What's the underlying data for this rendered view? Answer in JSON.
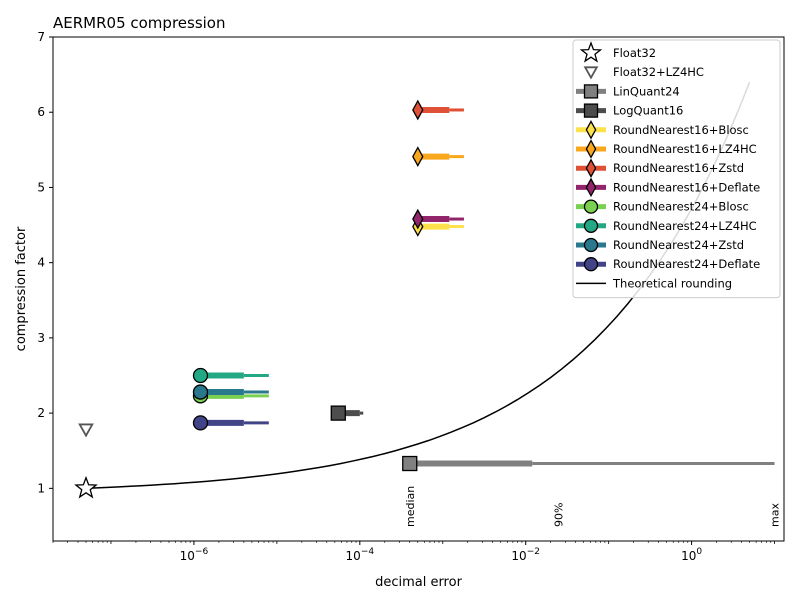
{
  "chart_data": {
    "type": "scatter",
    "title": "AERMR05 compression",
    "xlabel": "decimal error",
    "ylabel": "compression factor",
    "xscale": "log",
    "xlim": [
      2e-08,
      13
    ],
    "ylim": [
      0.3,
      7
    ],
    "x_ticks": [
      {
        "value": 1e-06,
        "base": "10",
        "exp": "−6"
      },
      {
        "value": 0.0001,
        "base": "10",
        "exp": "−4"
      },
      {
        "value": 0.01,
        "base": "10",
        "exp": "−2"
      },
      {
        "value": 1,
        "base": "10",
        "exp": "0"
      }
    ],
    "y_ticks": [
      1,
      2,
      3,
      4,
      5,
      6,
      7
    ],
    "grid": false,
    "legend_position": "top-right",
    "percentile_labels": [
      {
        "text": "median",
        "x": 0.0004
      },
      {
        "text": "90%",
        "x": 0.025
      },
      {
        "text": "max",
        "x": 10
      }
    ],
    "series": [
      {
        "name": "Float32",
        "marker": "star",
        "fill": "#ffffff",
        "edge": "#000000",
        "y": 1.0,
        "median": 5e-08,
        "p90": null,
        "max": null
      },
      {
        "name": "Float32+LZ4HC",
        "marker": "triangle-down",
        "fill": "#ffffff",
        "edge": "#555555",
        "y": 1.78,
        "median": 5e-08,
        "p90": null,
        "max": null
      },
      {
        "name": "LinQuant24",
        "marker": "square",
        "fill": "#808080",
        "edge": "#000000",
        "y": 1.33,
        "median": 0.0004,
        "p90": 0.012,
        "max": 10
      },
      {
        "name": "LogQuant16",
        "marker": "square",
        "fill": "#4d4d4d",
        "edge": "#000000",
        "y": 2.0,
        "median": 5.5e-05,
        "p90": 0.0001,
        "max": 0.00011
      },
      {
        "name": "RoundNearest16+Blosc",
        "marker": "diamond",
        "fill": "#fde14a",
        "edge": "#000000",
        "y": 4.48,
        "median": 0.0005,
        "p90": 0.0012,
        "max": 0.0018
      },
      {
        "name": "RoundNearest16+LZ4HC",
        "marker": "diamond",
        "fill": "#f9a81e",
        "edge": "#000000",
        "y": 5.41,
        "median": 0.0005,
        "p90": 0.0012,
        "max": 0.0018
      },
      {
        "name": "RoundNearest16+Zstd",
        "marker": "diamond",
        "fill": "#de5137",
        "edge": "#000000",
        "y": 6.03,
        "median": 0.0005,
        "p90": 0.0012,
        "max": 0.0018
      },
      {
        "name": "RoundNearest16+Deflate",
        "marker": "diamond",
        "fill": "#91246b",
        "edge": "#000000",
        "y": 4.58,
        "median": 0.0005,
        "p90": 0.0012,
        "max": 0.0018
      },
      {
        "name": "RoundNearest24+Blosc",
        "marker": "circle",
        "fill": "#7ad151",
        "edge": "#000000",
        "y": 2.23,
        "median": 1.2e-06,
        "p90": 4e-06,
        "max": 8e-06
      },
      {
        "name": "RoundNearest24+LZ4HC",
        "marker": "circle",
        "fill": "#22a884",
        "edge": "#000000",
        "y": 2.5,
        "median": 1.2e-06,
        "p90": 4e-06,
        "max": 8e-06
      },
      {
        "name": "RoundNearest24+Zstd",
        "marker": "circle",
        "fill": "#2a788e",
        "edge": "#000000",
        "y": 2.28,
        "median": 1.2e-06,
        "p90": 4e-06,
        "max": 8e-06
      },
      {
        "name": "RoundNearest24+Deflate",
        "marker": "circle",
        "fill": "#414487",
        "edge": "#000000",
        "y": 1.87,
        "median": 1.2e-06,
        "p90": 4e-06,
        "max": 8e-06
      }
    ],
    "theoretical_curve": {
      "name": "Theoretical rounding",
      "color": "#000000",
      "x_range": [
        5e-08,
        5
      ],
      "y_range": [
        1.0,
        6.4
      ]
    },
    "legend_order": [
      "Float32",
      "Float32+LZ4HC",
      "LinQuant24",
      "LogQuant16",
      "RoundNearest16+Blosc",
      "RoundNearest16+LZ4HC",
      "RoundNearest16+Zstd",
      "RoundNearest16+Deflate",
      "RoundNearest24+Blosc",
      "RoundNearest24+LZ4HC",
      "RoundNearest24+Zstd",
      "RoundNearest24+Deflate",
      "Theoretical rounding"
    ]
  }
}
